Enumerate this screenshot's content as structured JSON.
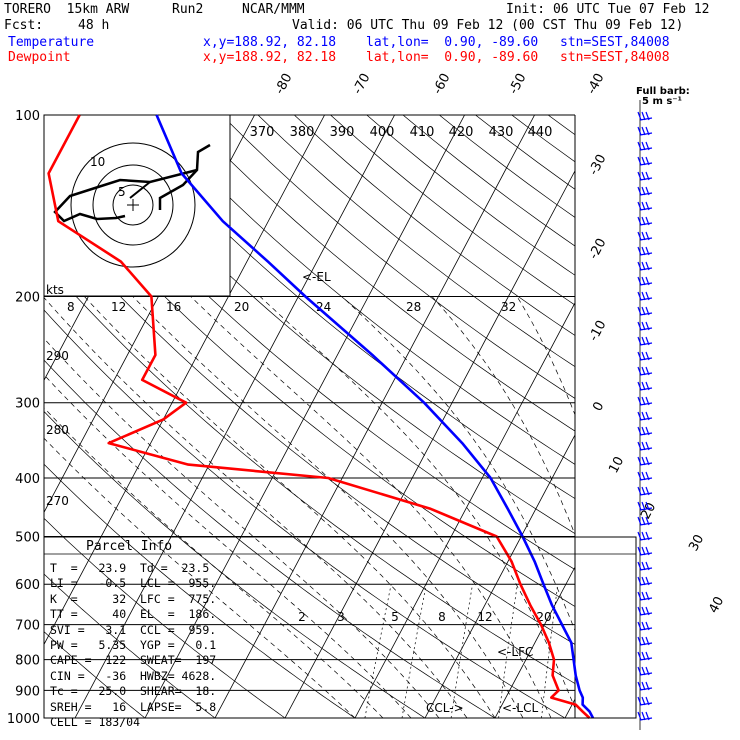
{
  "header": {
    "model": "TORERO  15km ARW",
    "run": "Run2",
    "source": "NCAR/MMM",
    "init": "Init: 06 UTC Tue 07 Feb 12",
    "fcst_label": "Fcst:",
    "fcst_value": "48 h",
    "valid": "Valid: 06 UTC Thu 09 Feb 12 (00 CST Thu 09 Feb 12)",
    "temp_label": "Temperature",
    "dew_label": "Dewpoint",
    "xy": "x,y=188.92, 82.18",
    "latlon": "lat,lon=  0.90, -89.60",
    "stn": "stn=SEST,84008",
    "fullbarb": "Full barb:",
    "fullbarb_val": "5 m s⁻¹"
  },
  "chart_data": {
    "type": "line",
    "title": "",
    "ylabel_units": "hPa",
    "y_scale": "log",
    "ylim": [
      1000,
      100
    ],
    "pressure_ticks": [
      100,
      200,
      300,
      400,
      500,
      600,
      700,
      800,
      900,
      1000
    ],
    "isotherm_labels": [
      "-80",
      "-70",
      "-60",
      "-50",
      "-40",
      "-30",
      "-20",
      "-10",
      "0",
      "10",
      "20",
      "30",
      "40"
    ],
    "theta_labels": [
      "370",
      "380",
      "390",
      "400",
      "410",
      "420",
      "430",
      "440"
    ],
    "theta_left_labels": [
      "290",
      "280",
      "270"
    ],
    "mixing_labels": [
      "2",
      "3",
      "5",
      "8",
      "12",
      "20"
    ],
    "hodograph_labels": [
      "kts",
      "8",
      "12",
      "16",
      "20",
      "24",
      "28",
      "32"
    ],
    "hodo_rings": [
      "5",
      "10"
    ],
    "annotations": [
      "<-EL",
      "<-LFC",
      "CCL->",
      "<-LCL"
    ],
    "series": [
      {
        "name": "Temperature",
        "color": "#0000ff",
        "points": [
          [
            1000,
            24.0
          ],
          [
            975,
            23.0
          ],
          [
            950,
            21.5
          ],
          [
            925,
            21.0
          ],
          [
            900,
            20.0
          ],
          [
            850,
            18.3
          ],
          [
            800,
            16.8
          ],
          [
            750,
            15.2
          ],
          [
            700,
            12.5
          ],
          [
            650,
            9.6
          ],
          [
            600,
            6.8
          ],
          [
            550,
            3.8
          ],
          [
            500,
            0.2
          ],
          [
            450,
            -4.0
          ],
          [
            400,
            -8.8
          ],
          [
            350,
            -15.5
          ],
          [
            300,
            -24.0
          ],
          [
            250,
            -35.0
          ],
          [
            200,
            -49.0
          ],
          [
            175,
            -57.0
          ],
          [
            150,
            -66.5
          ],
          [
            125,
            -76.0
          ],
          [
            100,
            -84.0
          ]
        ]
      },
      {
        "name": "Dewpoint",
        "color": "#ff0000",
        "points": [
          [
            1000,
            23.5
          ],
          [
            975,
            22.0
          ],
          [
            950,
            20.5
          ],
          [
            925,
            16.5
          ],
          [
            900,
            17.0
          ],
          [
            850,
            15.0
          ],
          [
            800,
            14.0
          ],
          [
            750,
            12.0
          ],
          [
            700,
            9.5
          ],
          [
            650,
            6.5
          ],
          [
            600,
            3.5
          ],
          [
            550,
            0.5
          ],
          [
            500,
            -3.5
          ],
          [
            450,
            -15.0
          ],
          [
            400,
            -32.0
          ],
          [
            380,
            -53.0
          ],
          [
            350,
            -66.0
          ],
          [
            320,
            -60.0
          ],
          [
            300,
            -58.0
          ],
          [
            275,
            -66.0
          ],
          [
            250,
            -66.0
          ],
          [
            200,
            -71.0
          ],
          [
            175,
            -78.0
          ],
          [
            150,
            -90.0
          ],
          [
            125,
            -95.0
          ],
          [
            100,
            -95.0
          ]
        ]
      }
    ]
  },
  "parcel": {
    "title": "Parcel Info",
    "rows": [
      "T  =   23.9  Td =  23.5",
      "LI =   -0.5  LCL =  955.",
      "K  =     32  LFC =  775.",
      "TT =     40  EL  =  186.",
      "SVI =   3.1  CCL =  959.",
      "PW =   5.35  YGP =   0.1",
      "CAPE =  122  SWEAT=  197",
      "CIN =   -36  HWBZ= 4628.",
      "Tc =   25.0  SHEAR=  18.",
      "SREH =   16  LAPSE=  5.8",
      "CELL = 183/04"
    ]
  }
}
